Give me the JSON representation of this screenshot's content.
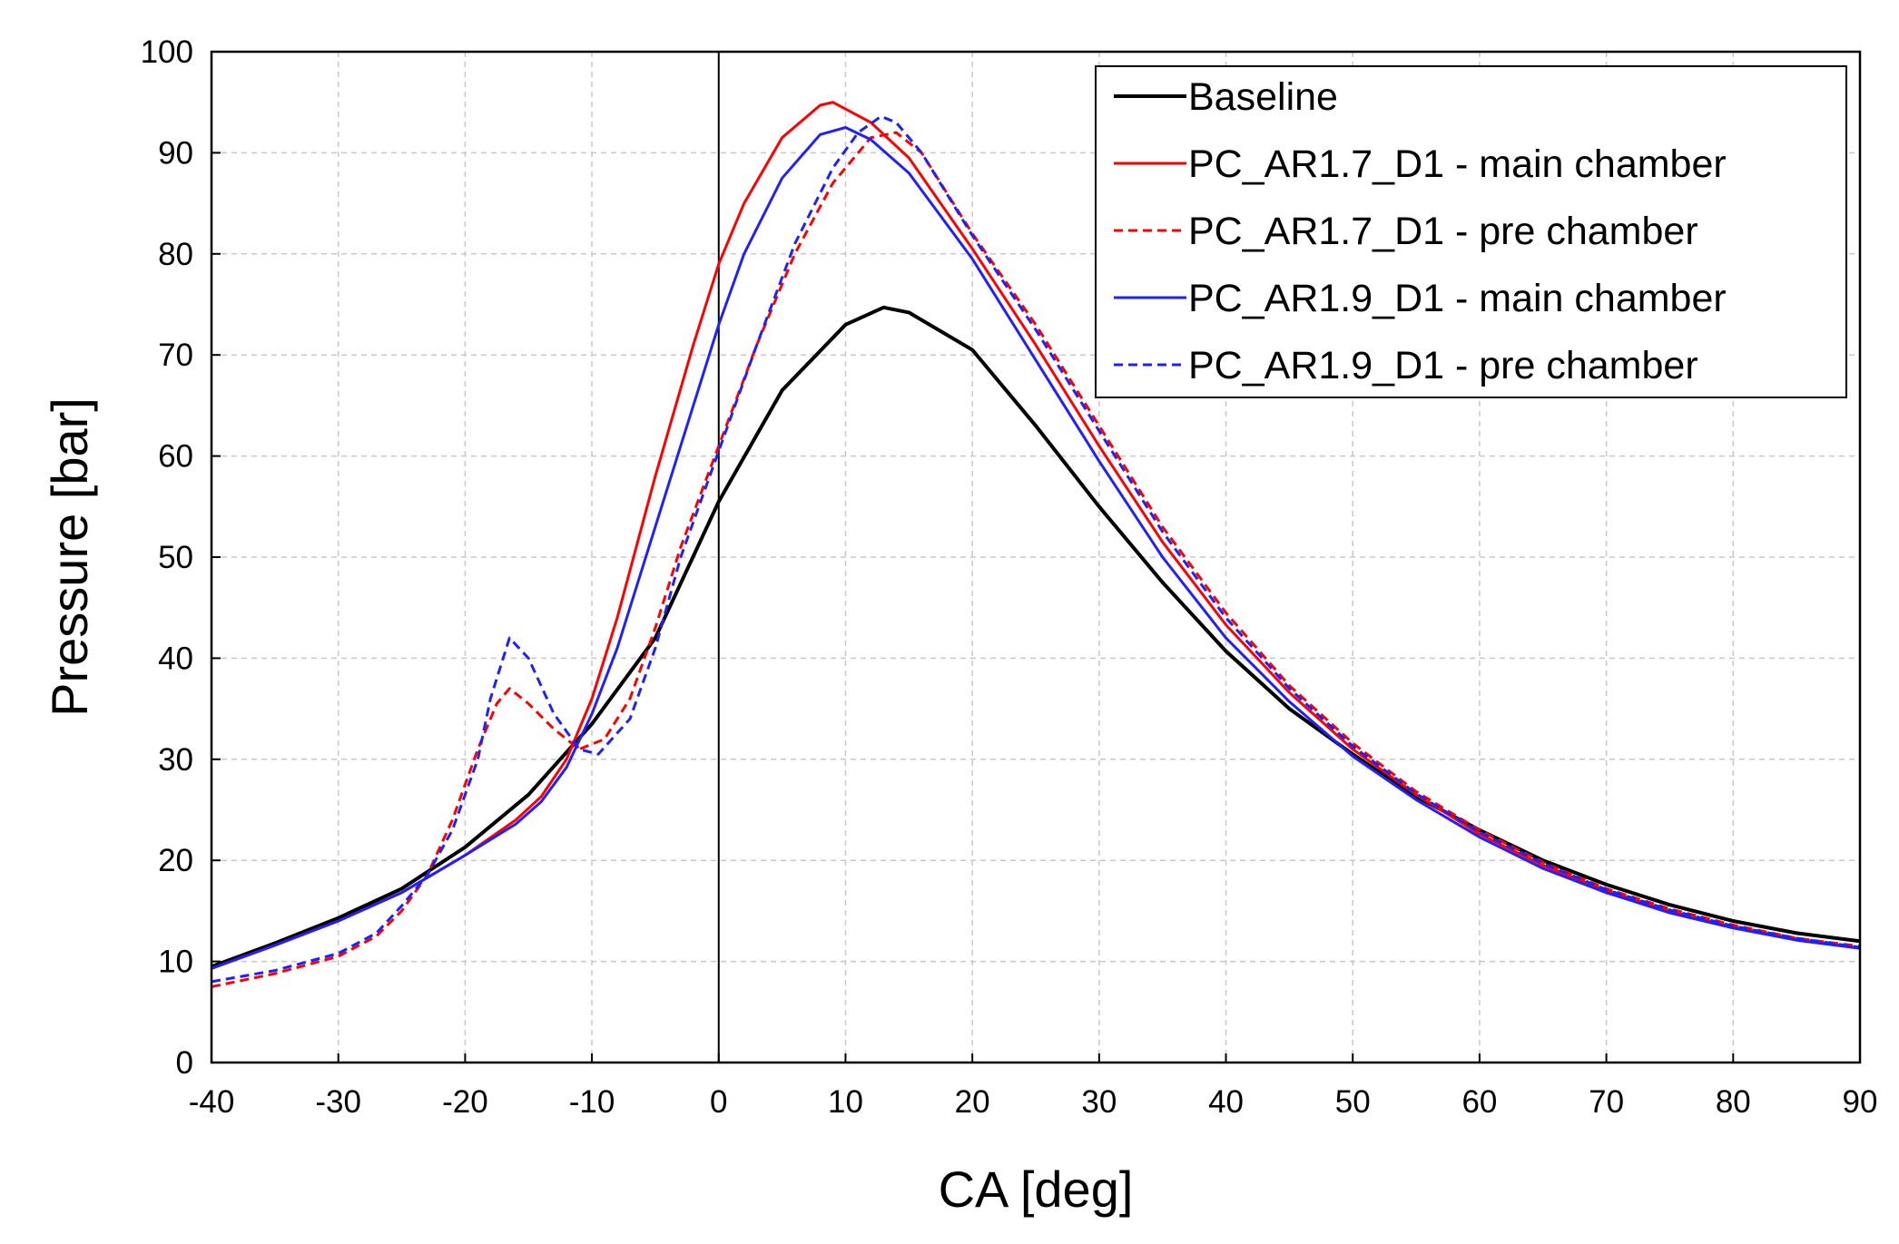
{
  "chart_data": {
    "type": "line",
    "title": "",
    "xlabel": "CA [deg]",
    "ylabel": "Pressure [bar]",
    "xlim": [
      -40,
      90
    ],
    "ylim": [
      0,
      100
    ],
    "xticks": [
      -40,
      -30,
      -20,
      -10,
      0,
      10,
      20,
      30,
      40,
      50,
      60,
      70,
      80,
      90
    ],
    "yticks": [
      0,
      10,
      20,
      30,
      40,
      50,
      60,
      70,
      80,
      90,
      100
    ],
    "grid": true,
    "legend_position": "top-right",
    "series": [
      {
        "name": "Baseline",
        "color": "#000000",
        "dash": "solid",
        "points": [
          [
            -40,
            9.5
          ],
          [
            -35,
            11.8
          ],
          [
            -30,
            14.3
          ],
          [
            -25,
            17.2
          ],
          [
            -20,
            21.3
          ],
          [
            -15,
            26.5
          ],
          [
            -10,
            33.5
          ],
          [
            -5,
            42
          ],
          [
            0,
            55.5
          ],
          [
            5,
            66.5
          ],
          [
            10,
            73
          ],
          [
            13,
            74.7
          ],
          [
            15,
            74.2
          ],
          [
            20,
            70.5
          ],
          [
            25,
            63
          ],
          [
            30,
            55
          ],
          [
            35,
            47.5
          ],
          [
            40,
            40.7
          ],
          [
            45,
            35
          ],
          [
            50,
            30.5
          ],
          [
            55,
            26.3
          ],
          [
            60,
            23
          ],
          [
            65,
            20
          ],
          [
            70,
            17.6
          ],
          [
            75,
            15.6
          ],
          [
            80,
            14
          ],
          [
            85,
            12.8
          ],
          [
            90,
            12
          ]
        ]
      },
      {
        "name": "PC_AR1.7_D1 - main chamber",
        "color": "#ff0000",
        "dash": "solid",
        "points": [
          [
            -40,
            9.3
          ],
          [
            -35,
            11.6
          ],
          [
            -30,
            14
          ],
          [
            -25,
            16.8
          ],
          [
            -20,
            20.5
          ],
          [
            -16,
            24
          ],
          [
            -14,
            26.3
          ],
          [
            -12,
            30
          ],
          [
            -10,
            36
          ],
          [
            -8,
            44
          ],
          [
            -5,
            58
          ],
          [
            -2,
            71
          ],
          [
            0,
            79
          ],
          [
            2,
            85
          ],
          [
            5,
            91.5
          ],
          [
            8,
            94.7
          ],
          [
            9,
            95
          ],
          [
            12,
            93
          ],
          [
            15,
            89.5
          ],
          [
            20,
            80.5
          ],
          [
            25,
            71
          ],
          [
            30,
            61
          ],
          [
            35,
            51.5
          ],
          [
            40,
            43.3
          ],
          [
            45,
            36.6
          ],
          [
            50,
            31
          ],
          [
            55,
            26.5
          ],
          [
            60,
            22.6
          ],
          [
            65,
            19.5
          ],
          [
            70,
            17
          ],
          [
            75,
            15
          ],
          [
            80,
            13.4
          ],
          [
            85,
            12.2
          ],
          [
            90,
            11.3
          ]
        ]
      },
      {
        "name": "PC_AR1.7_D1 - pre chamber",
        "color": "#ff0000",
        "dash": "dashed",
        "points": [
          [
            -40,
            7.5
          ],
          [
            -35,
            8.8
          ],
          [
            -30,
            10.5
          ],
          [
            -27,
            12.5
          ],
          [
            -25,
            15
          ],
          [
            -23,
            18.5
          ],
          [
            -21,
            24
          ],
          [
            -19,
            31
          ],
          [
            -17.5,
            35.5
          ],
          [
            -16.5,
            37
          ],
          [
            -15,
            35.5
          ],
          [
            -13,
            33
          ],
          [
            -11,
            31
          ],
          [
            -9,
            32
          ],
          [
            -7,
            36
          ],
          [
            -5,
            43
          ],
          [
            -3,
            51
          ],
          [
            0,
            61
          ],
          [
            3,
            71
          ],
          [
            6,
            80
          ],
          [
            9,
            87
          ],
          [
            12,
            91.5
          ],
          [
            14,
            92
          ],
          [
            16,
            90
          ],
          [
            20,
            82
          ],
          [
            25,
            73
          ],
          [
            30,
            63
          ],
          [
            35,
            53
          ],
          [
            40,
            44.5
          ],
          [
            45,
            37.3
          ],
          [
            50,
            31.6
          ],
          [
            55,
            26.8
          ],
          [
            60,
            23
          ],
          [
            65,
            19.8
          ],
          [
            70,
            17.2
          ],
          [
            75,
            15.2
          ],
          [
            80,
            13.6
          ],
          [
            85,
            12.3
          ],
          [
            90,
            11.5
          ]
        ]
      },
      {
        "name": "PC_AR1.9_D1 - main chamber",
        "color": "#2020ff",
        "dash": "solid",
        "points": [
          [
            -40,
            9.3
          ],
          [
            -35,
            11.6
          ],
          [
            -30,
            14
          ],
          [
            -25,
            16.8
          ],
          [
            -20,
            20.5
          ],
          [
            -16,
            23.6
          ],
          [
            -14,
            25.8
          ],
          [
            -12,
            29.2
          ],
          [
            -10,
            34.5
          ],
          [
            -8,
            41
          ],
          [
            -5,
            53
          ],
          [
            -2,
            65
          ],
          [
            0,
            73
          ],
          [
            2,
            80
          ],
          [
            5,
            87.5
          ],
          [
            8,
            91.8
          ],
          [
            10,
            92.5
          ],
          [
            12,
            91.3
          ],
          [
            15,
            88
          ],
          [
            20,
            79.5
          ],
          [
            25,
            69.5
          ],
          [
            30,
            59.5
          ],
          [
            35,
            50
          ],
          [
            40,
            42
          ],
          [
            45,
            35.7
          ],
          [
            50,
            30.3
          ],
          [
            55,
            26
          ],
          [
            60,
            22.3
          ],
          [
            65,
            19.2
          ],
          [
            70,
            16.8
          ],
          [
            75,
            14.8
          ],
          [
            80,
            13.3
          ],
          [
            85,
            12.1
          ],
          [
            90,
            11.3
          ]
        ]
      },
      {
        "name": "PC_AR1.9_D1 - pre chamber",
        "color": "#2020ff",
        "dash": "dashed",
        "points": [
          [
            -40,
            8
          ],
          [
            -35,
            9.1
          ],
          [
            -30,
            10.8
          ],
          [
            -27,
            12.8
          ],
          [
            -25,
            15.5
          ],
          [
            -23,
            18.5
          ],
          [
            -21,
            23
          ],
          [
            -19,
            30
          ],
          [
            -18,
            36
          ],
          [
            -16.5,
            42
          ],
          [
            -15,
            40
          ],
          [
            -13,
            34.5
          ],
          [
            -11,
            31
          ],
          [
            -9.5,
            30.5
          ],
          [
            -7,
            34
          ],
          [
            -5,
            41
          ],
          [
            -3,
            50
          ],
          [
            0,
            60.5
          ],
          [
            3,
            71
          ],
          [
            6,
            81
          ],
          [
            9,
            88.5
          ],
          [
            11,
            92
          ],
          [
            12.8,
            93.6
          ],
          [
            14,
            93
          ],
          [
            16,
            90
          ],
          [
            20,
            81.8
          ],
          [
            25,
            72.5
          ],
          [
            30,
            62.5
          ],
          [
            35,
            52.5
          ],
          [
            40,
            44
          ],
          [
            45,
            37
          ],
          [
            50,
            31.3
          ],
          [
            55,
            26.6
          ],
          [
            60,
            22.8
          ],
          [
            65,
            19.7
          ],
          [
            70,
            17.1
          ],
          [
            75,
            15.1
          ],
          [
            80,
            13.5
          ],
          [
            85,
            12.3
          ],
          [
            90,
            11.4
          ]
        ]
      }
    ]
  }
}
